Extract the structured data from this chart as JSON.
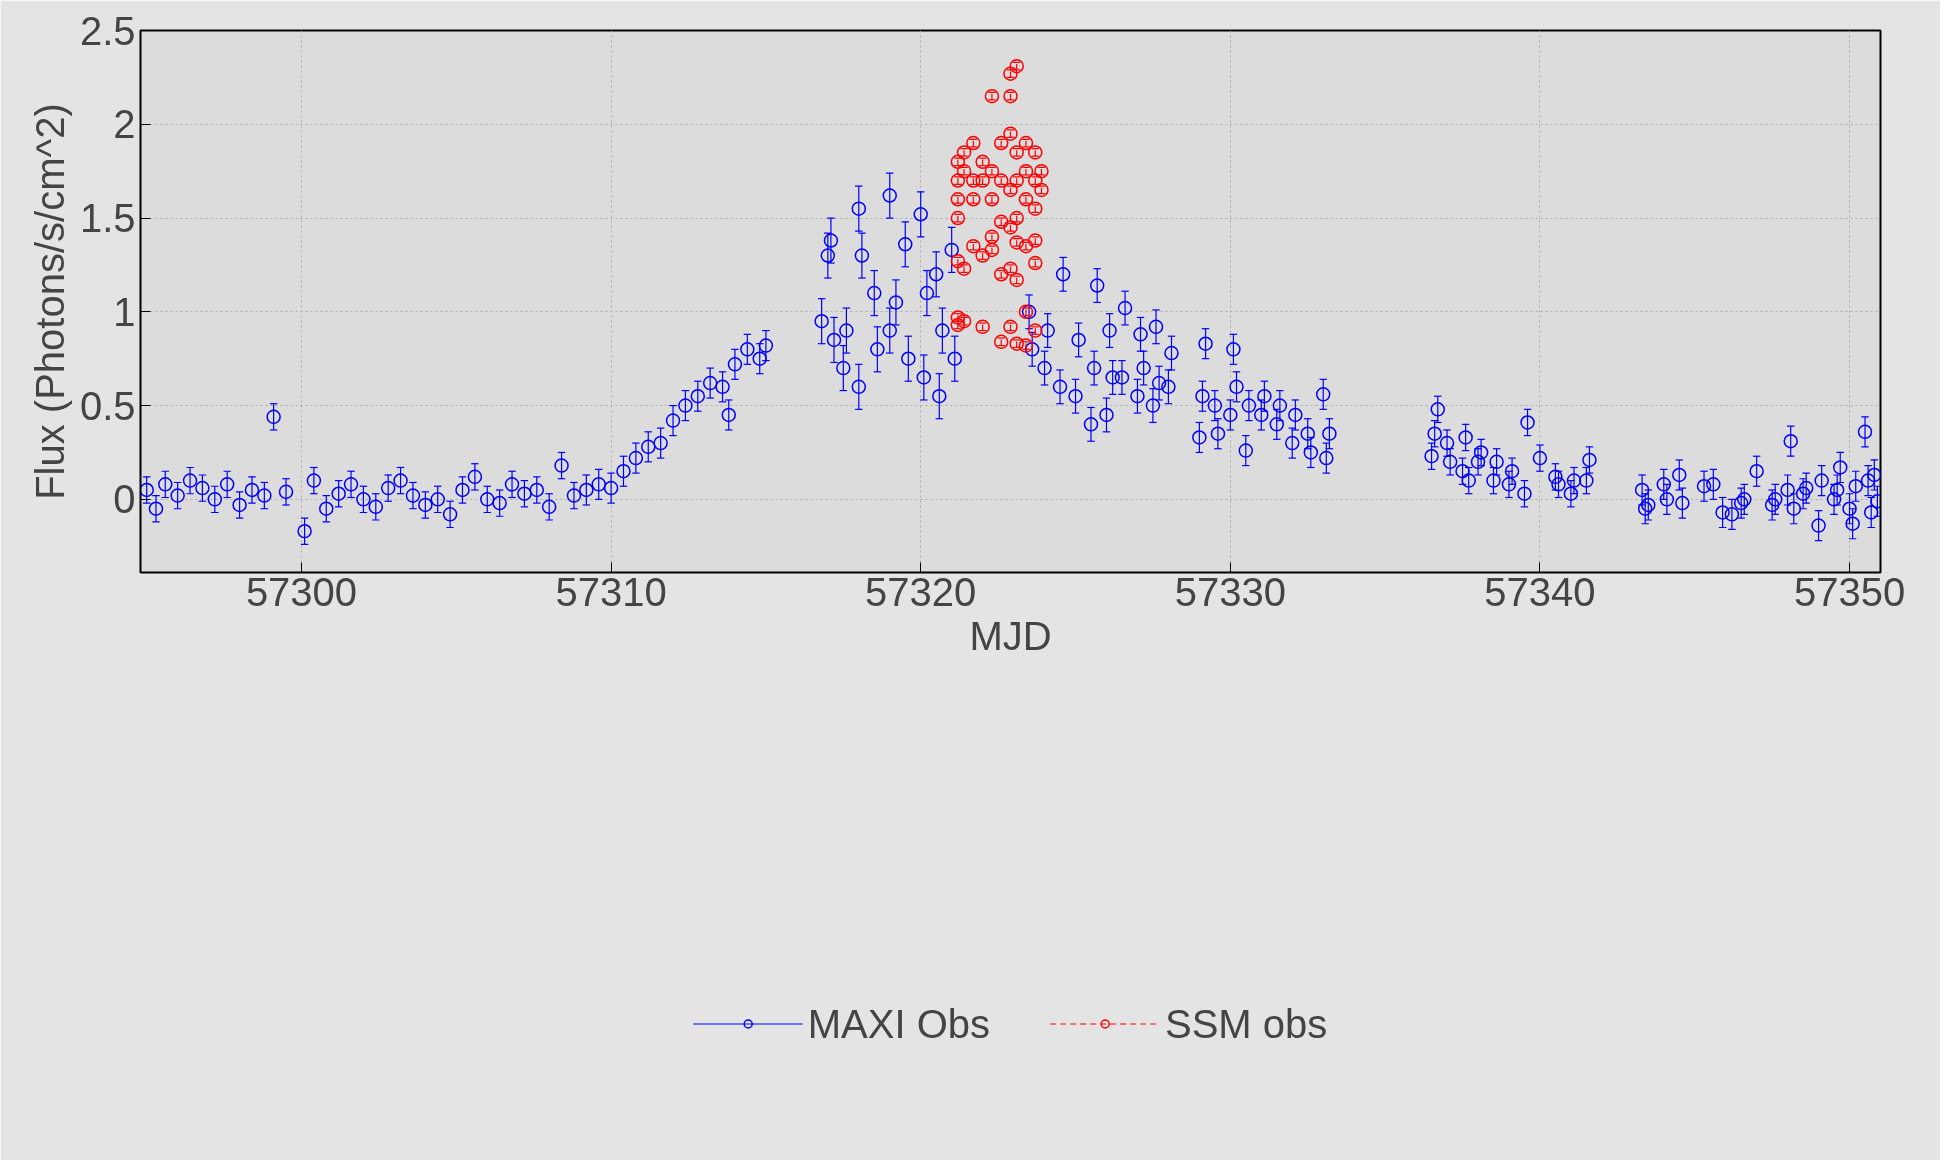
{
  "chart_data": {
    "type": "scatter",
    "xlabel": "MJD",
    "ylabel": "Flux (Photons/s/cm^2)",
    "xlim": [
      57294.8,
      57351.0
    ],
    "ylim": [
      -0.39,
      2.5
    ],
    "xticks": [
      57300,
      57310,
      57320,
      57330,
      57340,
      57350
    ],
    "yticks": [
      0,
      0.5,
      1,
      1.5,
      2,
      2.5
    ],
    "grid": true,
    "legend": "bottom",
    "marker": "circle",
    "series": [
      {
        "name": "MAXI Obs",
        "color": "#0000ff",
        "line_style": "solid",
        "x": [
          57295,
          57295.3,
          57295.6,
          57296,
          57296.4,
          57296.8,
          57297.2,
          57297.6,
          57298,
          57298.4,
          57298.8,
          57299.1,
          57299.5,
          57300.1,
          57300.4,
          57300.8,
          57301.2,
          57301.6,
          57302,
          57302.4,
          57302.8,
          57303.2,
          57303.6,
          57304,
          57304.4,
          57304.8,
          57305.2,
          57305.6,
          57306,
          57306.4,
          57306.8,
          57307.2,
          57307.6,
          57308,
          57308.4,
          57308.8,
          57309.2,
          57309.6,
          57310,
          57310.4,
          57310.8,
          57311.2,
          57311.6,
          57312,
          57312.4,
          57312.8,
          57313.2,
          57313.6,
          57313.8,
          57314,
          57314.4,
          57314.8,
          57315,
          57316.8,
          57317,
          57317.1,
          57317.2,
          57317.5,
          57317.6,
          57318,
          57318,
          57318.1,
          57318.5,
          57318.6,
          57319,
          57319,
          57319.2,
          57319.5,
          57319.6,
          57320,
          57320.1,
          57320.2,
          57320.5,
          57320.6,
          57320.7,
          57321,
          57321.1,
          57323.5,
          57323.6,
          57324,
          57324.1,
          57324.5,
          57324.6,
          57325,
          57325.1,
          57325.5,
          57325.6,
          57325.7,
          57326,
          57326.1,
          57326.2,
          57326.5,
          57326.6,
          57327,
          57327.1,
          57327.2,
          57327.5,
          57327.6,
          57327.7,
          57328,
          57328.1,
          57329,
          57329.1,
          57329.2,
          57329.5,
          57329.6,
          57330,
          57330.1,
          57330.2,
          57330.5,
          57330.6,
          57331,
          57331.1,
          57331.5,
          57331.6,
          57332,
          57332.1,
          57332.5,
          57332.6,
          57333,
          57333.1,
          57333.2,
          57336.5,
          57336.6,
          57336.7,
          57337,
          57337.1,
          57337.5,
          57337.6,
          57337.7,
          57338,
          57338.1,
          57338.5,
          57338.6,
          57339,
          57339.1,
          57339.5,
          57339.6,
          57340,
          57340.5,
          57340.6,
          57341,
          57341.1,
          57341.5,
          57341.6,
          57343.3,
          57343.4,
          57343.5,
          57344,
          57344.1,
          57344.5,
          57344.6,
          57345.3,
          57345.6,
          57345.9,
          57346.2,
          57346.5,
          57346.6,
          57347,
          57347.5,
          57347.6,
          57348,
          57348.1,
          57348.2,
          57348.5,
          57348.6,
          57349,
          57349.1,
          57349.5,
          57349.6,
          57349.7,
          57350,
          57350.1,
          57350.2,
          57350.5,
          57350.6,
          57350.7,
          57350.8,
          57350.9
        ],
        "values": [
          0.05,
          -0.05,
          0.08,
          0.02,
          0.1,
          0.06,
          0.0,
          0.08,
          -0.03,
          0.05,
          0.02,
          0.44,
          0.04,
          -0.17,
          0.1,
          -0.05,
          0.03,
          0.08,
          0.0,
          -0.04,
          0.06,
          0.1,
          0.02,
          -0.03,
          0.0,
          -0.08,
          0.05,
          0.12,
          0.0,
          -0.02,
          0.08,
          0.03,
          0.05,
          -0.04,
          0.18,
          0.02,
          0.05,
          0.08,
          0.06,
          0.15,
          0.22,
          0.28,
          0.3,
          0.42,
          0.5,
          0.55,
          0.62,
          0.6,
          0.45,
          0.72,
          0.8,
          0.75,
          0.82,
          0.95,
          1.3,
          1.38,
          0.85,
          0.7,
          0.9,
          1.55,
          0.6,
          1.3,
          1.1,
          0.8,
          1.62,
          0.9,
          1.05,
          1.36,
          0.75,
          1.52,
          0.65,
          1.1,
          1.2,
          0.55,
          0.9,
          1.33,
          0.75,
          1.0,
          0.8,
          0.7,
          0.9,
          0.6,
          1.2,
          0.55,
          0.85,
          0.4,
          0.7,
          1.14,
          0.45,
          0.9,
          0.65,
          0.65,
          1.02,
          0.55,
          0.88,
          0.7,
          0.5,
          0.92,
          0.62,
          0.6,
          0.78,
          0.33,
          0.55,
          0.83,
          0.5,
          0.35,
          0.45,
          0.8,
          0.6,
          0.26,
          0.5,
          0.45,
          0.55,
          0.4,
          0.5,
          0.3,
          0.45,
          0.35,
          0.25,
          0.56,
          0.22,
          0.35,
          0.23,
          0.35,
          0.48,
          0.3,
          0.2,
          0.15,
          0.33,
          0.1,
          0.2,
          0.25,
          0.1,
          0.2,
          0.08,
          0.15,
          0.03,
          0.41,
          0.22,
          0.12,
          0.08,
          0.03,
          0.1,
          0.1,
          0.21,
          0.05,
          -0.05,
          -0.03,
          0.08,
          0.0,
          0.13,
          -0.02,
          0.07,
          0.08,
          -0.07,
          -0.08,
          -0.02,
          0.0,
          0.15,
          -0.03,
          0.0,
          0.05,
          0.31,
          -0.05,
          0.03,
          0.06,
          -0.14,
          0.1,
          0.0,
          0.05,
          0.17,
          -0.05,
          -0.13,
          0.07,
          0.36,
          0.1,
          -0.07,
          0.13,
          -0.01
        ],
        "errors": [
          0.07,
          0.07,
          0.07,
          0.07,
          0.07,
          0.07,
          0.07,
          0.07,
          0.07,
          0.07,
          0.07,
          0.07,
          0.07,
          0.07,
          0.07,
          0.07,
          0.07,
          0.07,
          0.07,
          0.07,
          0.07,
          0.07,
          0.07,
          0.07,
          0.07,
          0.07,
          0.07,
          0.07,
          0.07,
          0.07,
          0.07,
          0.07,
          0.07,
          0.07,
          0.07,
          0.07,
          0.08,
          0.08,
          0.08,
          0.08,
          0.08,
          0.08,
          0.08,
          0.08,
          0.08,
          0.08,
          0.08,
          0.08,
          0.08,
          0.08,
          0.08,
          0.08,
          0.08,
          0.12,
          0.12,
          0.12,
          0.12,
          0.12,
          0.12,
          0.12,
          0.12,
          0.12,
          0.12,
          0.12,
          0.12,
          0.12,
          0.12,
          0.12,
          0.12,
          0.12,
          0.12,
          0.12,
          0.12,
          0.12,
          0.12,
          0.12,
          0.12,
          0.09,
          0.09,
          0.09,
          0.09,
          0.09,
          0.09,
          0.09,
          0.09,
          0.09,
          0.09,
          0.09,
          0.09,
          0.09,
          0.09,
          0.09,
          0.09,
          0.09,
          0.09,
          0.09,
          0.09,
          0.09,
          0.09,
          0.09,
          0.09,
          0.08,
          0.08,
          0.08,
          0.08,
          0.08,
          0.08,
          0.08,
          0.08,
          0.08,
          0.08,
          0.08,
          0.08,
          0.08,
          0.08,
          0.08,
          0.08,
          0.08,
          0.08,
          0.08,
          0.08,
          0.08,
          0.07,
          0.07,
          0.07,
          0.07,
          0.07,
          0.07,
          0.07,
          0.07,
          0.07,
          0.07,
          0.07,
          0.07,
          0.07,
          0.07,
          0.07,
          0.07,
          0.07,
          0.07,
          0.07,
          0.07,
          0.07,
          0.07,
          0.07,
          0.08,
          0.08,
          0.08,
          0.08,
          0.08,
          0.08,
          0.08,
          0.08,
          0.08,
          0.08,
          0.08,
          0.08,
          0.08,
          0.08,
          0.08,
          0.08,
          0.08,
          0.08,
          0.08,
          0.08,
          0.08,
          0.08,
          0.08,
          0.08,
          0.08,
          0.08,
          0.08,
          0.08,
          0.08,
          0.08,
          0.08,
          0.08,
          0.08,
          0.08
        ]
      },
      {
        "name": "SSM obs",
        "color": "#ff0000",
        "line_style": "dashed",
        "x": [
          57321.2,
          57321.2,
          57321.2,
          57321.2,
          57321.2,
          57321.2,
          57321.2,
          57321.4,
          57321.4,
          57321.4,
          57321.4,
          57321.7,
          57321.7,
          57321.7,
          57321.7,
          57322,
          57322,
          57322,
          57322,
          57322.3,
          57322.3,
          57322.3,
          57322.3,
          57322.3,
          57322.6,
          57322.6,
          57322.6,
          57322.6,
          57322.6,
          57322.9,
          57322.9,
          57322.9,
          57322.9,
          57322.9,
          57322.9,
          57322.9,
          57323.1,
          57323.1,
          57323.1,
          57323.1,
          57323.1,
          57323.1,
          57323.1,
          57323.4,
          57323.4,
          57323.4,
          57323.4,
          57323.4,
          57323.4,
          57323.7,
          57323.7,
          57323.7,
          57323.7,
          57323.7,
          57323.7,
          57323.9,
          57323.9
        ],
        "values": [
          1.7,
          1.8,
          1.6,
          1.5,
          1.27,
          0.97,
          0.93,
          1.75,
          1.85,
          1.23,
          0.95,
          1.7,
          1.9,
          1.35,
          1.6,
          1.8,
          1.3,
          1.7,
          0.92,
          2.15,
          1.75,
          1.4,
          1.33,
          1.6,
          1.9,
          1.7,
          0.84,
          1.2,
          1.48,
          2.27,
          2.15,
          1.95,
          1.45,
          1.23,
          0.92,
          1.65,
          2.31,
          1.85,
          1.7,
          1.5,
          1.17,
          0.83,
          1.37,
          1.9,
          1.6,
          1.35,
          1.0,
          0.82,
          1.75,
          1.85,
          1.7,
          1.55,
          1.26,
          0.9,
          1.38,
          1.65,
          1.75
        ],
        "errors": [
          0.02,
          0.02,
          0.02,
          0.02,
          0.02,
          0.02,
          0.02,
          0.02,
          0.02,
          0.02,
          0.02,
          0.02,
          0.02,
          0.02,
          0.02,
          0.02,
          0.02,
          0.02,
          0.02,
          0.02,
          0.02,
          0.02,
          0.02,
          0.02,
          0.02,
          0.02,
          0.02,
          0.02,
          0.02,
          0.02,
          0.02,
          0.02,
          0.02,
          0.02,
          0.02,
          0.02,
          0.02,
          0.02,
          0.02,
          0.02,
          0.02,
          0.02,
          0.02,
          0.02,
          0.02,
          0.02,
          0.02,
          0.02,
          0.02,
          0.02,
          0.02,
          0.02,
          0.02,
          0.02,
          0.02,
          0.02,
          0.02
        ]
      }
    ]
  }
}
